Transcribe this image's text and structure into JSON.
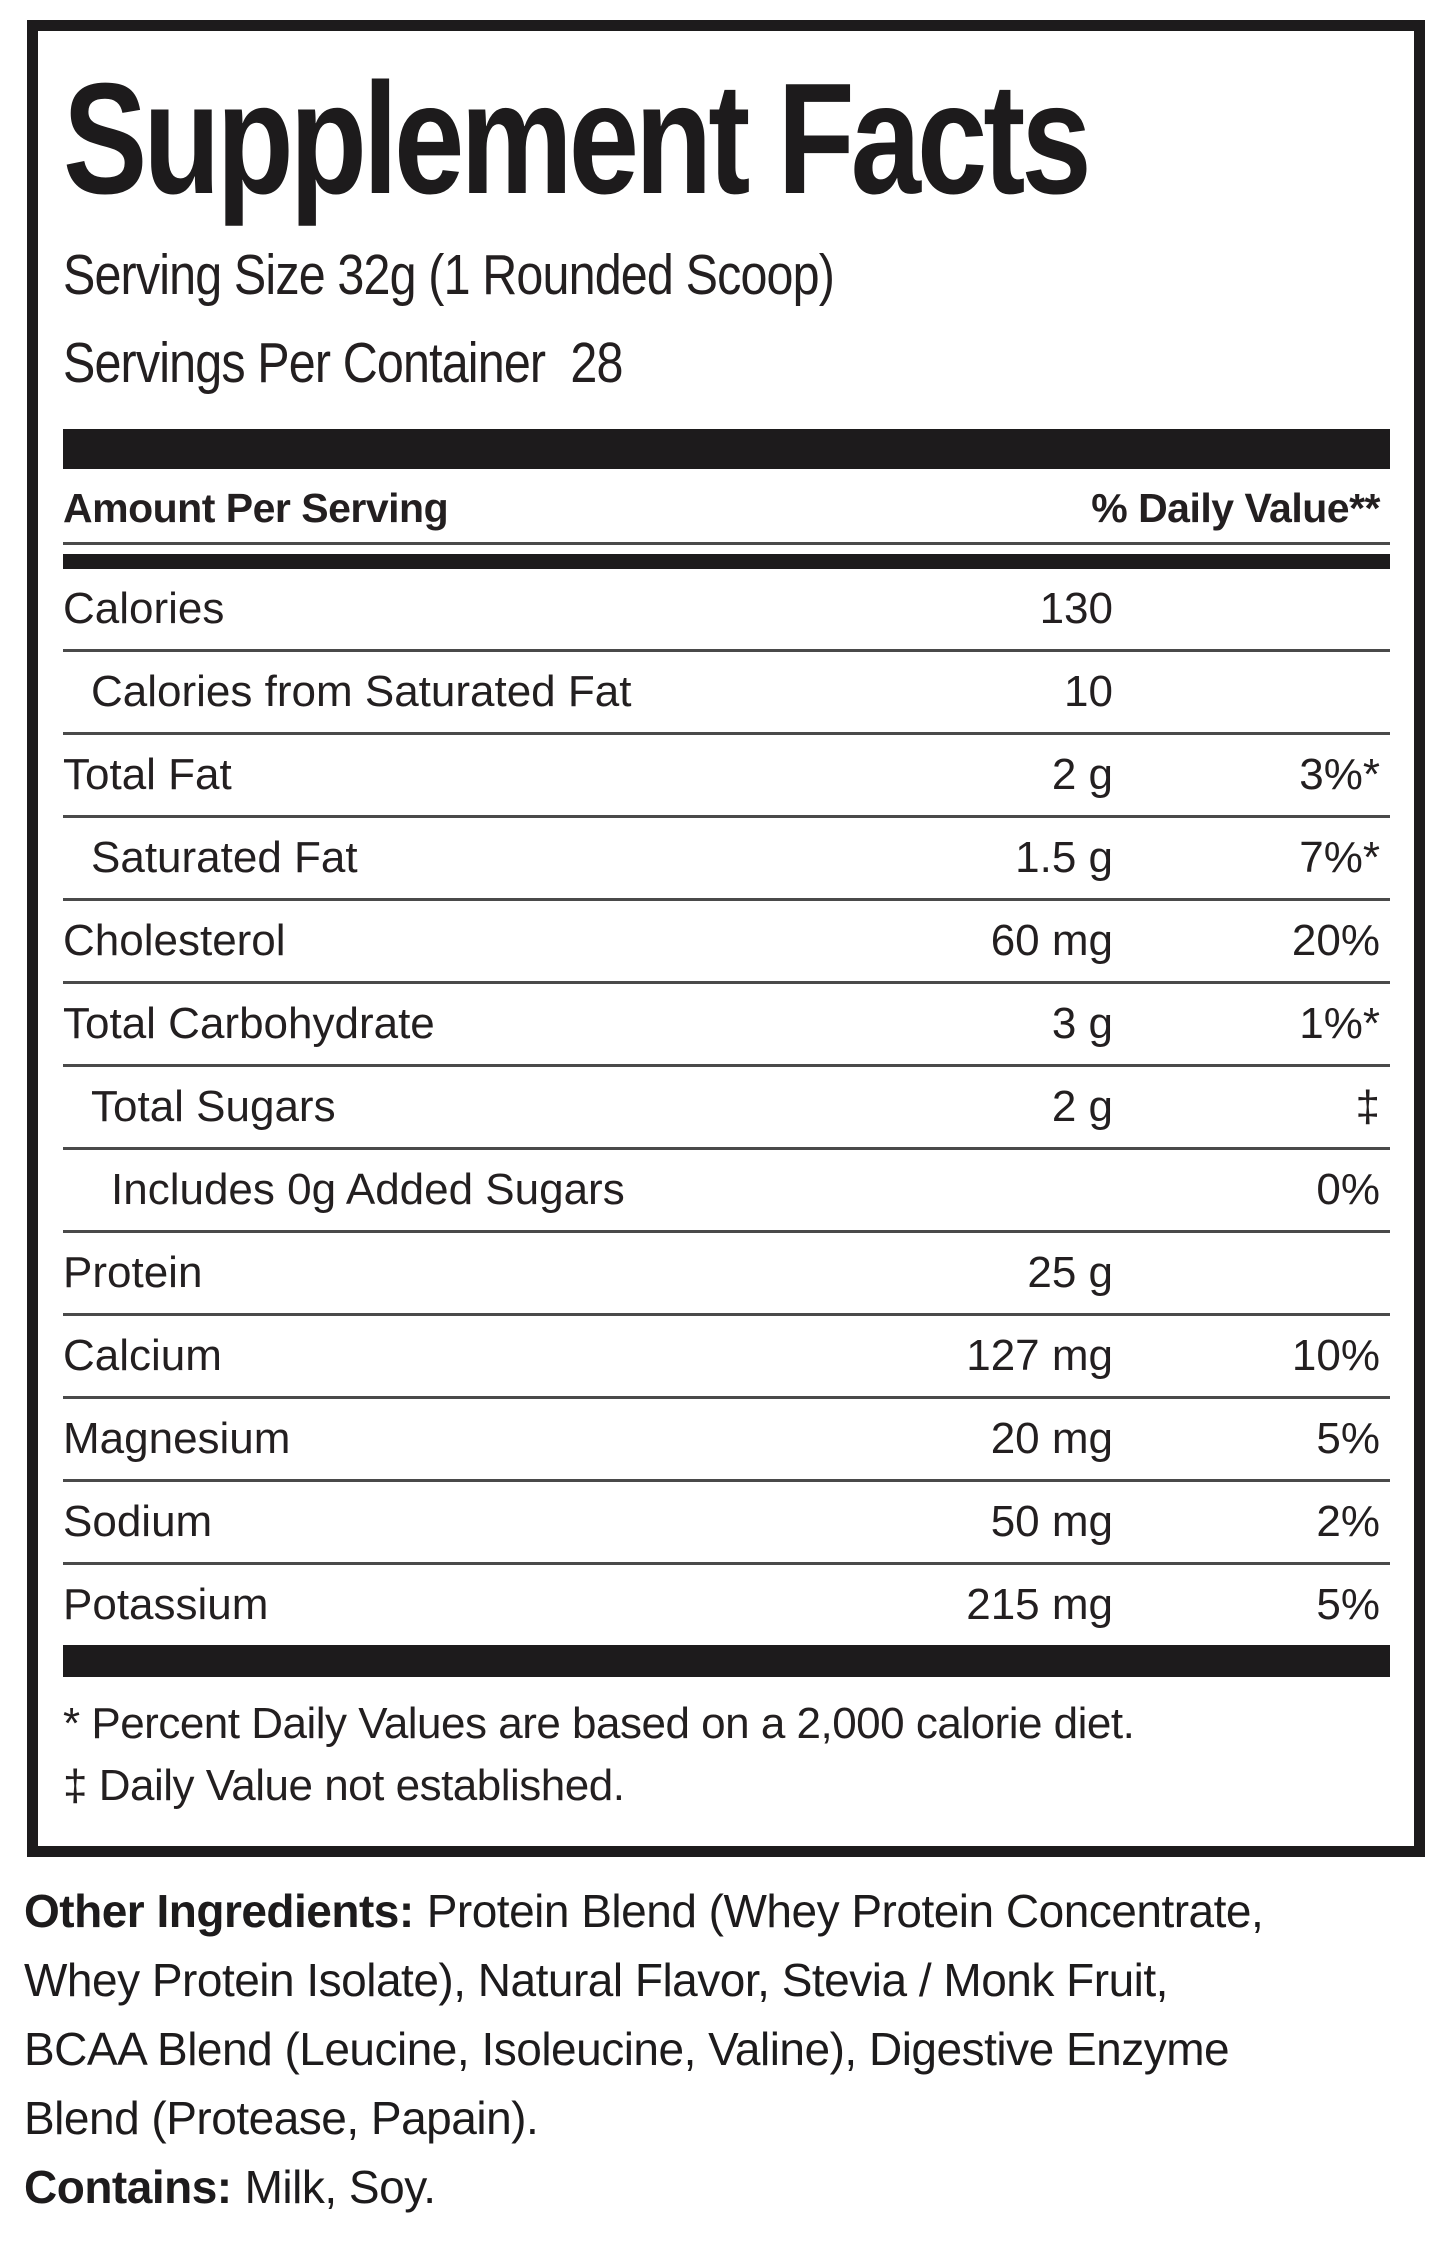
{
  "label": {
    "title": "Supplement Facts",
    "serving_size": "Serving Size 32g (1 Rounded Scoop)",
    "servings_per_container": "Servings Per Container  28",
    "header": {
      "amount": "Amount Per Serving",
      "daily_value": "% Daily Value**"
    },
    "rows": [
      {
        "label": "Calories",
        "amount": "130",
        "dv": ""
      },
      {
        "label": "Calories from Saturated Fat",
        "amount": "10",
        "dv": ""
      },
      {
        "label": "Total Fat",
        "amount": "2 g",
        "dv": "3%*"
      },
      {
        "label": "Saturated Fat",
        "amount": "1.5 g",
        "dv": "7%*"
      },
      {
        "label": "Cholesterol",
        "amount": "60 mg",
        "dv": "20%"
      },
      {
        "label": "Total Carbohydrate",
        "amount": "3 g",
        "dv": "1%*"
      },
      {
        "label": "Total Sugars",
        "amount": "2 g",
        "dv": "‡"
      },
      {
        "label": "Includes 0g Added Sugars",
        "amount": "",
        "dv": "0%"
      },
      {
        "label": "Protein",
        "amount": "25 g",
        "dv": ""
      },
      {
        "label": "Calcium",
        "amount": "127 mg",
        "dv": "10%"
      },
      {
        "label": "Magnesium",
        "amount": "20 mg",
        "dv": "5%"
      },
      {
        "label": "Sodium",
        "amount": "50 mg",
        "dv": "2%"
      },
      {
        "label": "Potassium",
        "amount": "215 mg",
        "dv": "5%"
      }
    ],
    "footnotes": [
      "* Percent Daily Values are based on a 2,000 calorie diet.",
      "‡ Daily Value not established."
    ]
  },
  "other_ingredients": {
    "label": "Other Ingredients:",
    "line1_rest": "Protein Blend (Whey Protein Concentrate,",
    "line2": "Whey Protein Isolate), Natural Flavor, Stevia / Monk Fruit,",
    "line3": "BCAA Blend (Leucine, Isoleucine, Valine), Digestive Enzyme",
    "line4": "Blend (Protease, Papain)."
  },
  "contains": {
    "label": "Contains:",
    "rest": "Milk, Soy."
  },
  "colors": {
    "text": "#231f20",
    "bars": "#1d1b1c",
    "thin_rule": "#4a4a4a",
    "background": "#ffffff"
  }
}
